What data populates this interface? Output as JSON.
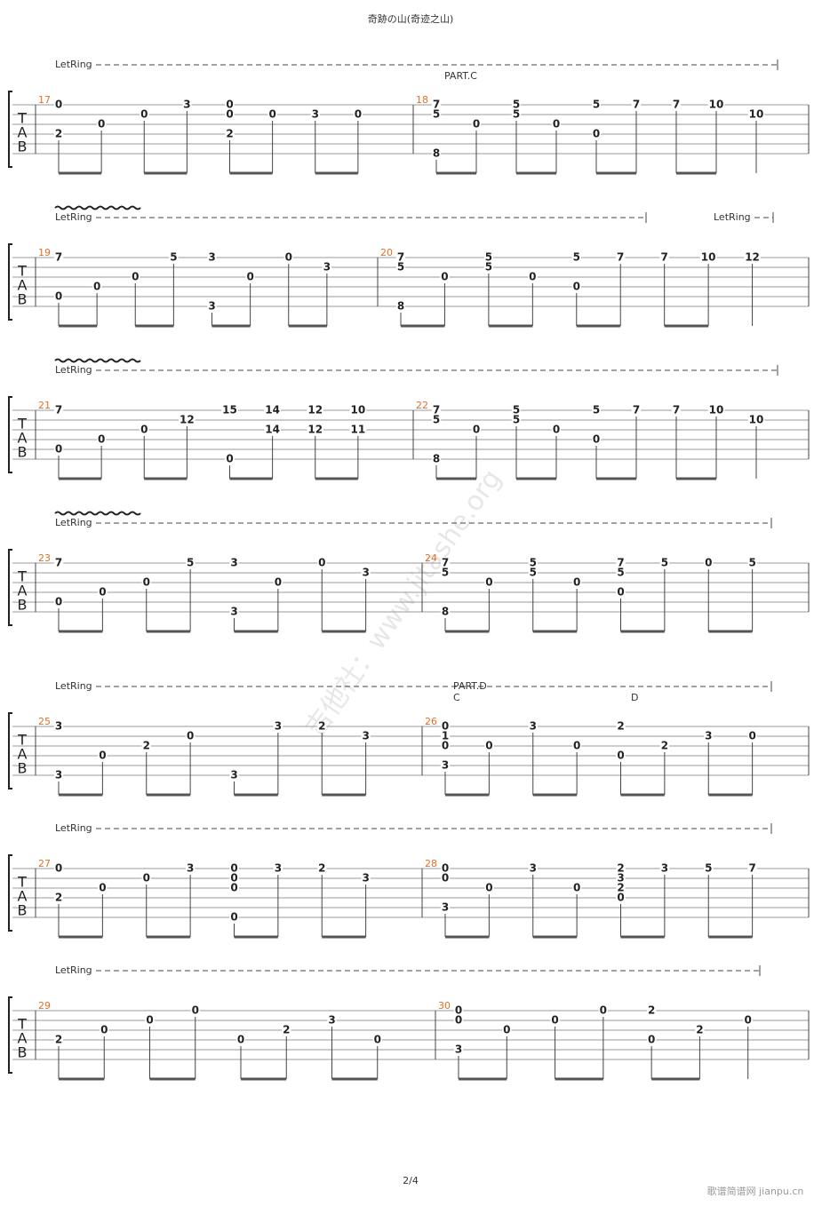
{
  "header": {
    "title": "奇跡の山(奇迹之山)"
  },
  "tab_clef": [
    "T",
    "A",
    "B"
  ],
  "systems": [
    {
      "let_ring": [
        "LetRing"
      ],
      "annotations": [
        "PART.C"
      ],
      "measures": [
        {
          "number": "17",
          "beats": [
            [
              "0",
              null,
              null,
              "2",
              null,
              null
            ],
            [
              null,
              null,
              "0",
              null,
              null,
              null
            ],
            [
              null,
              "0",
              null,
              null,
              null,
              null
            ],
            [
              "3",
              null,
              null,
              null,
              null,
              null
            ],
            [
              "0",
              "0",
              null,
              "2",
              null,
              null
            ],
            [
              null,
              "0",
              null,
              null,
              null,
              null
            ],
            [
              null,
              "3",
              null,
              null,
              null,
              null
            ],
            [
              null,
              "0",
              null,
              null,
              null,
              null
            ]
          ]
        },
        {
          "number": "18",
          "beats": [
            [
              "7",
              "5",
              null,
              null,
              null,
              "8"
            ],
            [
              null,
              null,
              "0",
              null,
              null,
              null
            ],
            [
              "5",
              "5",
              null,
              null,
              null,
              null
            ],
            [
              null,
              null,
              "0",
              null,
              null,
              null
            ],
            [
              "5",
              null,
              null,
              "0",
              null,
              null
            ],
            [
              "7",
              null,
              null,
              null,
              null,
              null
            ],
            [
              "7",
              null,
              null,
              null,
              null,
              null
            ],
            [
              "10",
              null,
              null,
              null,
              null,
              null
            ],
            [
              null,
              "10",
              null,
              null,
              null,
              null
            ]
          ]
        }
      ]
    },
    {
      "let_ring": [
        "LetRing",
        "LetRing"
      ],
      "annotations": [],
      "measures": [
        {
          "number": "19",
          "beats": [
            [
              "7",
              null,
              null,
              null,
              "0",
              null
            ],
            [
              null,
              null,
              null,
              "0",
              null,
              null
            ],
            [
              null,
              null,
              "0",
              null,
              null,
              null
            ],
            [
              "5",
              null,
              null,
              null,
              null,
              null
            ],
            [
              "3",
              null,
              null,
              null,
              null,
              "3"
            ],
            [
              null,
              null,
              "0",
              null,
              null,
              null
            ],
            [
              "0",
              null,
              null,
              null,
              null,
              null
            ],
            [
              null,
              "3",
              null,
              null,
              null,
              null
            ]
          ]
        },
        {
          "number": "20",
          "beats": [
            [
              "7",
              "5",
              null,
              null,
              null,
              "8"
            ],
            [
              null,
              null,
              "0",
              null,
              null,
              null
            ],
            [
              "5",
              "5",
              null,
              null,
              null,
              null
            ],
            [
              null,
              null,
              "0",
              null,
              null,
              null
            ],
            [
              "5",
              null,
              null,
              "0",
              null,
              null
            ],
            [
              "7",
              null,
              null,
              null,
              null,
              null
            ],
            [
              "7",
              null,
              null,
              null,
              null,
              null
            ],
            [
              "10",
              null,
              null,
              null,
              null,
              null
            ],
            [
              "12",
              null,
              null,
              null,
              null,
              null
            ]
          ]
        }
      ]
    },
    {
      "let_ring": [
        "LetRing"
      ],
      "annotations": [],
      "measures": [
        {
          "number": "21",
          "beats": [
            [
              "7",
              null,
              null,
              null,
              "0",
              null
            ],
            [
              null,
              null,
              null,
              "0",
              null,
              null
            ],
            [
              null,
              null,
              "0",
              null,
              null,
              null
            ],
            [
              null,
              "12",
              null,
              null,
              null,
              null
            ],
            [
              "15",
              null,
              null,
              null,
              null,
              "0"
            ],
            [
              "14",
              null,
              "14",
              null,
              null,
              null
            ],
            [
              "12",
              null,
              "12",
              null,
              null,
              null
            ],
            [
              "10",
              null,
              "11",
              null,
              null,
              null
            ]
          ]
        },
        {
          "number": "22",
          "beats": [
            [
              "7",
              "5",
              null,
              null,
              null,
              "8"
            ],
            [
              null,
              null,
              "0",
              null,
              null,
              null
            ],
            [
              "5",
              "5",
              null,
              null,
              null,
              null
            ],
            [
              null,
              null,
              "0",
              null,
              null,
              null
            ],
            [
              "5",
              null,
              null,
              "0",
              null,
              null
            ],
            [
              "7",
              null,
              null,
              null,
              null,
              null
            ],
            [
              "7",
              null,
              null,
              null,
              null,
              null
            ],
            [
              "10",
              null,
              null,
              null,
              null,
              null
            ],
            [
              null,
              "10",
              null,
              null,
              null,
              null
            ]
          ]
        }
      ]
    },
    {
      "let_ring": [
        "LetRing"
      ],
      "annotations": [],
      "measures": [
        {
          "number": "23",
          "beats": [
            [
              "7",
              null,
              null,
              null,
              "0",
              null
            ],
            [
              null,
              null,
              null,
              "0",
              null,
              null
            ],
            [
              null,
              null,
              "0",
              null,
              null,
              null
            ],
            [
              "5",
              null,
              null,
              null,
              null,
              null
            ],
            [
              "3",
              null,
              null,
              null,
              null,
              "3"
            ],
            [
              null,
              null,
              "0",
              null,
              null,
              null
            ],
            [
              "0",
              null,
              null,
              null,
              null,
              null
            ],
            [
              null,
              "3",
              null,
              null,
              null,
              null
            ]
          ]
        },
        {
          "number": "24",
          "beats": [
            [
              "7",
              "5",
              null,
              null,
              null,
              "8"
            ],
            [
              null,
              null,
              "0",
              null,
              null,
              null
            ],
            [
              "5",
              "5",
              null,
              null,
              null,
              null
            ],
            [
              null,
              null,
              "0",
              null,
              null,
              null
            ],
            [
              "7",
              "5",
              null,
              "0",
              null,
              null
            ],
            [
              "5",
              null,
              null,
              null,
              null,
              null
            ],
            [
              "0",
              null,
              null,
              null,
              null,
              null
            ],
            [
              "5",
              null,
              null,
              null,
              null,
              null
            ]
          ]
        }
      ]
    },
    {
      "let_ring": [
        "LetRing"
      ],
      "annotations": [
        "PART.D",
        "C",
        "D"
      ],
      "measures": [
        {
          "number": "25",
          "beats": [
            [
              "3",
              null,
              null,
              null,
              null,
              "3"
            ],
            [
              null,
              null,
              null,
              "0",
              null,
              null
            ],
            [
              null,
              null,
              "2",
              null,
              null,
              null
            ],
            [
              null,
              "0",
              null,
              null,
              null,
              null
            ],
            [
              null,
              null,
              null,
              null,
              null,
              "3"
            ],
            [
              "3",
              null,
              null,
              null,
              null,
              null
            ],
            [
              "2",
              null,
              null,
              null,
              null,
              null
            ],
            [
              null,
              "3",
              null,
              null,
              null,
              null
            ]
          ]
        },
        {
          "number": "26",
          "beats": [
            [
              "0",
              "1",
              "0",
              null,
              "3",
              null
            ],
            [
              null,
              null,
              "0",
              null,
              null,
              null
            ],
            [
              "3",
              null,
              null,
              null,
              null,
              null
            ],
            [
              null,
              null,
              "0",
              null,
              null,
              null
            ],
            [
              "2",
              null,
              null,
              "0",
              null,
              null
            ],
            [
              null,
              null,
              "2",
              null,
              null,
              null
            ],
            [
              null,
              "3",
              null,
              null,
              null,
              null
            ],
            [
              null,
              "0",
              null,
              null,
              null,
              null
            ]
          ]
        }
      ]
    },
    {
      "let_ring": [
        "LetRing"
      ],
      "annotations": [],
      "measures": [
        {
          "number": "27",
          "beats": [
            [
              "0",
              null,
              null,
              "2",
              null,
              null
            ],
            [
              null,
              null,
              "0",
              null,
              null,
              null
            ],
            [
              null,
              "0",
              null,
              null,
              null,
              null
            ],
            [
              "3",
              null,
              null,
              null,
              null,
              null
            ],
            [
              "0",
              "0",
              "0",
              null,
              null,
              "0"
            ],
            [
              "3",
              null,
              null,
              null,
              null,
              null
            ],
            [
              "2",
              null,
              null,
              null,
              null,
              null
            ],
            [
              null,
              "3",
              null,
              null,
              null,
              null
            ]
          ]
        },
        {
          "number": "28",
          "beats": [
            [
              "0",
              "0",
              null,
              null,
              "3",
              null
            ],
            [
              null,
              null,
              "0",
              null,
              null,
              null
            ],
            [
              "3",
              null,
              null,
              null,
              null,
              null
            ],
            [
              null,
              null,
              "0",
              null,
              null,
              null
            ],
            [
              "2",
              "3",
              "2",
              "0",
              null,
              null
            ],
            [
              "3",
              null,
              null,
              null,
              null,
              null
            ],
            [
              "5",
              null,
              null,
              null,
              null,
              null
            ],
            [
              "7",
              null,
              null,
              null,
              null,
              null
            ]
          ]
        }
      ]
    },
    {
      "let_ring": [
        "LetRing"
      ],
      "annotations": [],
      "measures": [
        {
          "number": "29",
          "beats": [
            [
              null,
              null,
              null,
              "2",
              null,
              null
            ],
            [
              null,
              null,
              "0",
              null,
              null,
              null
            ],
            [
              null,
              "0",
              null,
              null,
              null,
              null
            ],
            [
              "0",
              null,
              null,
              null,
              null,
              null
            ],
            [
              null,
              null,
              null,
              "0",
              null,
              null
            ],
            [
              null,
              null,
              "2",
              null,
              null,
              null
            ],
            [
              null,
              "3",
              null,
              null,
              null,
              null
            ],
            [
              null,
              null,
              null,
              "0",
              null,
              null
            ]
          ]
        },
        {
          "number": "30",
          "beats": [
            [
              "0",
              "0",
              null,
              null,
              "3",
              null
            ],
            [
              null,
              null,
              "0",
              null,
              null,
              null
            ],
            [
              null,
              "0",
              null,
              null,
              null,
              null
            ],
            [
              "0",
              null,
              null,
              null,
              null,
              null
            ],
            [
              "2",
              null,
              null,
              "0",
              null,
              null
            ],
            [
              null,
              null,
              "2",
              null,
              null,
              null
            ],
            [
              null,
              "0",
              null,
              null,
              null,
              null
            ]
          ]
        }
      ]
    }
  ],
  "footer": {
    "page": "2/4"
  },
  "watermark": "吉他社：www.jitashe.org",
  "site_mark": "歌谱简谱网 jianpu.cn"
}
